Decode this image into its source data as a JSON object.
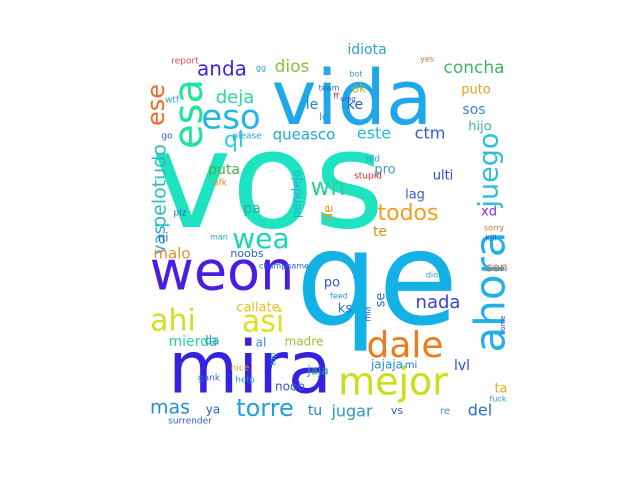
{
  "words": [
    {
      "text": "vos",
      "color": "#1ee3c0"
    },
    {
      "text": "qe",
      "color": "#14b1e6"
    },
    {
      "text": "vida",
      "color": "#1fa7e8"
    },
    {
      "text": "mira",
      "color": "#3322e0"
    },
    {
      "text": "weon",
      "color": "#4a1de4"
    },
    {
      "text": "mejor",
      "color": "#c6e01a"
    },
    {
      "text": "ahora",
      "color": "#22b0e8"
    },
    {
      "text": "dale",
      "color": "#f07a1a"
    },
    {
      "text": "esa",
      "color": "#1fe49a"
    },
    {
      "text": "asi",
      "color": "#dde020"
    },
    {
      "text": "ahi",
      "color": "#cfe020"
    },
    {
      "text": "eso",
      "color": "#22b6e4"
    },
    {
      "text": "wea",
      "color": "#1fd4b8"
    },
    {
      "text": "juego",
      "color": "#2cc0d6"
    },
    {
      "text": "ese",
      "color": "#f06a2a"
    },
    {
      "text": "torre",
      "color": "#22a0d8"
    },
    {
      "text": "todos",
      "color": "#f0a020"
    },
    {
      "text": "wn",
      "color": "#2fd098"
    },
    {
      "text": "ql",
      "color": "#2acfe0"
    },
    {
      "text": "anda",
      "color": "#3b28d8"
    },
    {
      "text": "deja",
      "color": "#2ad7a2"
    },
    {
      "text": "concha",
      "color": "#3db860"
    },
    {
      "text": "este",
      "color": "#28b8d6"
    },
    {
      "text": "queasco",
      "color": "#1fa8d0"
    },
    {
      "text": "ctm",
      "color": "#2a5ad8"
    },
    {
      "text": "dios",
      "color": "#7ec83a"
    },
    {
      "text": "idiota",
      "color": "#2aa0d0"
    },
    {
      "text": "puto",
      "color": "#e8a020"
    },
    {
      "text": "sos",
      "color": "#3a8ad0"
    },
    {
      "text": "hijo",
      "color": "#3ab8a8"
    },
    {
      "text": "pelotudo",
      "color": "#2ac0b8"
    },
    {
      "text": "vas",
      "color": "#2aa6d0"
    },
    {
      "text": "nada",
      "color": "#3a40d0"
    },
    {
      "text": "mierda",
      "color": "#2ad0a0"
    },
    {
      "text": "callate",
      "color": "#e8c020"
    },
    {
      "text": "madre",
      "color": "#a0c030"
    },
    {
      "text": "mas",
      "color": "#2a8ad0"
    },
    {
      "text": "jugar",
      "color": "#2a9ad0"
    },
    {
      "text": "del",
      "color": "#2a70d0"
    },
    {
      "text": "malo",
      "color": "#e09030"
    },
    {
      "text": "ni",
      "color": "#2a6ad0"
    },
    {
      "text": "puta",
      "color": "#4ab040"
    },
    {
      "text": "pa",
      "color": "#28b0a0"
    },
    {
      "text": "te",
      "color": "#e08a20"
    },
    {
      "text": "de",
      "color": "#e0a020"
    },
    {
      "text": "lag",
      "color": "#3a5ad0"
    },
    {
      "text": "ulti",
      "color": "#2a4ad0"
    },
    {
      "text": "pro",
      "color": "#3a9ad0"
    },
    {
      "text": "xd",
      "color": "#8a2ad0"
    },
    {
      "text": "le",
      "color": "#2a80d0"
    },
    {
      "text": "ke",
      "color": "#2a60d0"
    },
    {
      "text": "ok",
      "color": "#a0c030"
    },
    {
      "text": "lol",
      "color": "#2aa0d0"
    },
    {
      "text": "po",
      "color": "#2a60d0"
    },
    {
      "text": "ks",
      "color": "#2a70d0"
    },
    {
      "text": "se",
      "color": "#2a6ad0"
    },
    {
      "text": "son",
      "color": "#e07030"
    },
    {
      "text": "jaja",
      "color": "#2aa0a0"
    },
    {
      "text": "jajaja",
      "color": "#2a8ad0"
    },
    {
      "text": "mi",
      "color": "#2a70d0"
    },
    {
      "text": "lvl",
      "color": "#2a50d0"
    },
    {
      "text": "ta",
      "color": "#e0b020"
    },
    {
      "text": "tu",
      "color": "#2a80d0"
    },
    {
      "text": "vs",
      "color": "#2a60d0"
    },
    {
      "text": "re",
      "color": "#2a9ad0"
    },
    {
      "text": "ya",
      "color": "#2a60d0"
    },
    {
      "text": "da",
      "color": "#2a9ad0"
    },
    {
      "text": "al",
      "color": "#2a9ad0"
    },
    {
      "text": "noob",
      "color": "#2a60d0"
    },
    {
      "text": "noobs",
      "color": "#2a60d0"
    },
    {
      "text": "pendejo",
      "color": "#2ab0d0"
    },
    {
      "text": "nid",
      "color": "#3a9ad0"
    },
    {
      "text": "stupid",
      "color": "#d02a2a"
    },
    {
      "text": "afk",
      "color": "#e08a20"
    },
    {
      "text": "report",
      "color": "#e04a4a"
    },
    {
      "text": "wtf",
      "color": "#2a9ad0"
    },
    {
      "text": "go",
      "color": "#2a60d0"
    },
    {
      "text": "please",
      "color": "#2a9ad0"
    },
    {
      "text": "plz",
      "color": "#2a60d0"
    },
    {
      "text": "man",
      "color": "#2a9ad0"
    },
    {
      "text": "champname",
      "color": "#2a60d0"
    },
    {
      "text": "feed",
      "color": "#2a9ad0"
    },
    {
      "text": "nice",
      "color": "#e0a020"
    },
    {
      "text": "help",
      "color": "#2a9ad0"
    },
    {
      "text": "gank",
      "color": "#2a60d0"
    },
    {
      "text": "top",
      "color": "#2a9ad0"
    },
    {
      "text": "surrender",
      "color": "#2a60d0"
    },
    {
      "text": "fuck",
      "color": "#2a9ad0"
    },
    {
      "text": "kill",
      "color": "#2a60d0"
    },
    {
      "text": "sorry",
      "color": "#e07030"
    },
    {
      "text": "come",
      "color": "#2a60d0"
    },
    {
      "text": "team",
      "color": "#2a60d0"
    },
    {
      "text": "bot",
      "color": "#2a9ad0"
    },
    {
      "text": "omg",
      "color": "#2a60d0"
    },
    {
      "text": "yes",
      "color": "#e07030"
    },
    {
      "text": "dios",
      "color": "#2a9ad0"
    },
    {
      "text": "mia",
      "color": "#2a60d0"
    },
    {
      "text": "gg",
      "color": "#2a9ad0"
    },
    {
      "text": "ff",
      "color": "#d02a2a"
    }
  ]
}
